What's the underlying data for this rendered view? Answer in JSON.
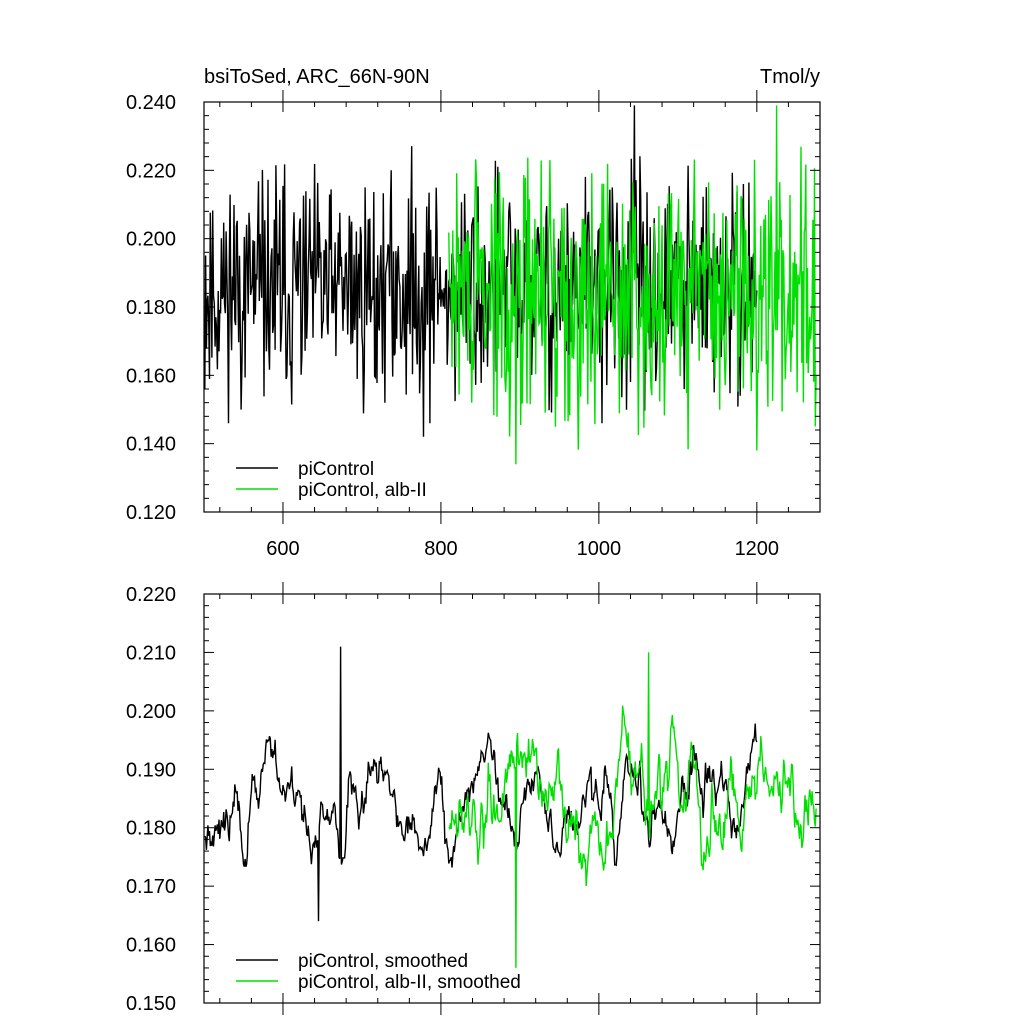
{
  "colors": {
    "control": "#000000",
    "alb": "#00e000"
  },
  "chart_data": [
    {
      "type": "line",
      "title": "bsiToSed, ARC_66N-90N",
      "units": "Tmol/y",
      "xlim": [
        500,
        1280
      ],
      "ylim": [
        0.12,
        0.24
      ],
      "xticks": [
        600,
        800,
        1000,
        1200
      ],
      "xtick_labels": [
        "600",
        "800",
        "1000",
        "1200"
      ],
      "yticks": [
        0.12,
        0.14,
        0.16,
        0.18,
        0.2,
        0.22,
        0.24
      ],
      "ytick_labels": [
        "0.120",
        "0.140",
        "0.160",
        "0.180",
        "0.200",
        "0.220",
        "0.240"
      ],
      "legend_position": "bottom-left",
      "series": [
        {
          "name": "piControl",
          "x_range": [
            501,
            1200
          ],
          "mean": 0.185,
          "amplitude": 0.016,
          "peak": 0.239,
          "peak_x": 1045,
          "trough": 0.142,
          "trough_x": 778
        },
        {
          "name": "piControl, alb-II",
          "x_range": [
            810,
            1275
          ],
          "mean": 0.184,
          "amplitude": 0.018,
          "peak": 0.239,
          "peak_x": 1225,
          "trough": 0.134,
          "trough_x": 895
        }
      ]
    },
    {
      "type": "line",
      "title": "",
      "xlim": [
        500,
        1280
      ],
      "ylim": [
        0.15,
        0.22
      ],
      "xticks": [
        600,
        800,
        1000,
        1200
      ],
      "yticks": [
        0.15,
        0.16,
        0.17,
        0.18,
        0.19,
        0.2,
        0.21,
        0.22
      ],
      "ytick_labels": [
        "0.150",
        "0.160",
        "0.170",
        "0.180",
        "0.190",
        "0.200",
        "0.210",
        "0.220"
      ],
      "legend_position": "bottom-left",
      "series": [
        {
          "name": "piControl, smoothed",
          "x_range": [
            501,
            1200
          ],
          "mean": 0.185,
          "amplitude": 0.007,
          "peak": 0.211,
          "peak_x": 673,
          "trough": 0.164,
          "trough_x": 645
        },
        {
          "name": "piControl, alb-II, smoothed",
          "x_range": [
            810,
            1275
          ],
          "mean": 0.185,
          "amplitude": 0.009,
          "peak": 0.21,
          "peak_x": 1063,
          "trough": 0.156,
          "trough_x": 895
        }
      ]
    }
  ]
}
